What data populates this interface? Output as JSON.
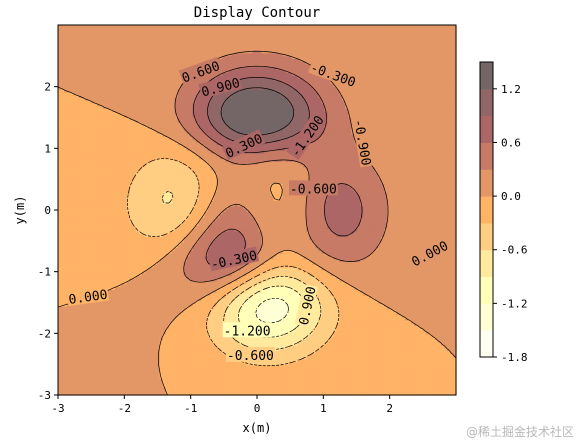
{
  "chart_data": {
    "type": "contour",
    "title": "Display Contour",
    "xlabel": "x(m)",
    "ylabel": "y(m)",
    "xlim": [
      -3,
      3
    ],
    "ylim": [
      -3,
      3
    ],
    "xticks": [
      "-3",
      "-2",
      "-1",
      "0",
      "1",
      "2"
    ],
    "yticks": [
      "-3",
      "-2",
      "-1",
      "0",
      "1",
      "2"
    ],
    "function": "3(1-x)^2 e^{-x^2-(y+1)^2} - 10(x/5 - x^3 - y^5) e^{-x^2-y^2} - (1/3) e^{-(x+1)^2-y^2}, scaled by 1/3 over the peaks surface",
    "filled_levels": [
      -1.8,
      -1.5,
      -1.2,
      -0.9,
      -0.6,
      -0.3,
      0.0,
      0.3,
      0.6,
      0.9,
      1.2,
      1.5
    ],
    "line_levels": [
      -1.5,
      -1.2,
      -0.9,
      -0.6,
      -0.3,
      0.0,
      0.3,
      0.6,
      0.9,
      1.2
    ],
    "colormap": "afmhot",
    "alpha": 0.6,
    "contour_labels": [
      {
        "text": "0.600",
        "x": -0.85,
        "y": 2.25,
        "rot": 20
      },
      {
        "text": "0.900",
        "x": -0.55,
        "y": 2.0,
        "rot": 15
      },
      {
        "text": "-0.300",
        "x": 1.15,
        "y": 2.2,
        "rot": -20
      },
      {
        "text": "0.300",
        "x": -0.2,
        "y": 1.05,
        "rot": 25
      },
      {
        "text": "-1.200",
        "x": 0.75,
        "y": 1.2,
        "rot": 55
      },
      {
        "text": "-0.900",
        "x": 1.6,
        "y": 1.1,
        "rot": -80
      },
      {
        "text": "-0.600",
        "x": 0.85,
        "y": 0.35,
        "rot": 0
      },
      {
        "text": "0.000",
        "x": 2.6,
        "y": -0.7,
        "rot": 28
      },
      {
        "text": "-0.300",
        "x": -0.35,
        "y": -0.8,
        "rot": 12
      },
      {
        "text": "0.000",
        "x": -2.55,
        "y": -1.4,
        "rot": 8
      },
      {
        "text": "-1.200",
        "x": -0.15,
        "y": -1.95,
        "rot": 0
      },
      {
        "text": "0.900",
        "x": 0.75,
        "y": -1.55,
        "rot": 78
      },
      {
        "text": "-0.600",
        "x": -0.1,
        "y": -2.35,
        "rot": 0
      }
    ],
    "colorbar": {
      "ticks": [
        "1.2",
        "0.6",
        "0.0",
        "-0.6",
        "-1.2",
        "-1.8"
      ],
      "tick_values": [
        1.2,
        0.6,
        0.0,
        -0.6,
        -1.2,
        -1.8
      ],
      "range": [
        -1.8,
        1.5
      ]
    },
    "grid": false
  },
  "watermark": "@稀土掘金技术社区"
}
